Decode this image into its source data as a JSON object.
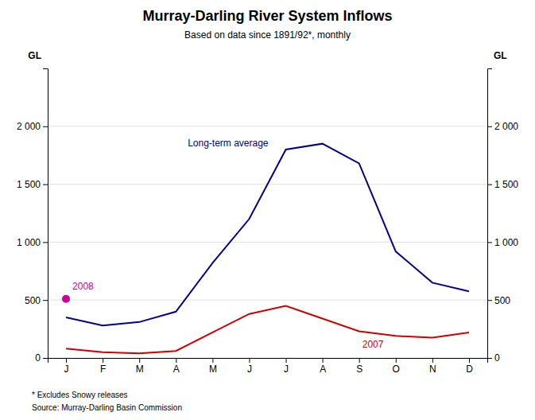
{
  "chart_data": {
    "type": "line",
    "title": "Murray-Darling River System Inflows",
    "subtitle": "Based on data since 1891/92*, monthly",
    "footnotes": [
      "*  Excludes Snowy releases",
      "Source: Murray-Darling Basin Commission"
    ],
    "categories": [
      "J",
      "F",
      "M",
      "A",
      "M",
      "J",
      "J",
      "A",
      "S",
      "O",
      "N",
      "D"
    ],
    "series": [
      {
        "name": "Long-term average",
        "color": "#00008B",
        "type": "line",
        "values": [
          350,
          280,
          310,
          400,
          820,
          1200,
          1800,
          1850,
          1680,
          920,
          650,
          575
        ]
      },
      {
        "name": "2007",
        "color": "#cc0000",
        "type": "line",
        "values": [
          80,
          50,
          40,
          60,
          220,
          380,
          450,
          340,
          230,
          190,
          175,
          220
        ]
      },
      {
        "name": "2008",
        "color": "#cc0099",
        "type": "scatter",
        "marker": "circle",
        "values": [
          510,
          null,
          null,
          null,
          null,
          null,
          null,
          null,
          null,
          null,
          null,
          null
        ]
      }
    ],
    "ylabel": "GL",
    "y2label": "GL",
    "ylim": [
      0,
      2500
    ],
    "yticks": [
      0,
      500,
      {
        "value": 1000,
        "label": "1 000"
      },
      {
        "value": 1500,
        "label": "1 500"
      },
      {
        "value": 2000,
        "label": "2 000"
      }
    ],
    "y2lim": [
      0,
      2500
    ],
    "y2ticks": [
      0,
      500,
      {
        "value": 1000,
        "label": "1 000"
      },
      {
        "value": 1500,
        "label": "1 500"
      },
      {
        "value": 2000,
        "label": "2 000"
      }
    ],
    "grid": true
  }
}
